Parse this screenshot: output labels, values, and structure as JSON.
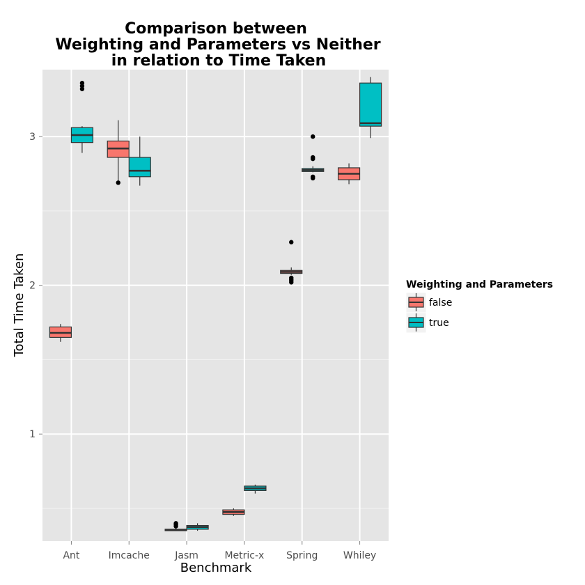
{
  "chart_data": {
    "type": "box",
    "title": [
      "Comparison between",
      "Weighting and Parameters vs Neither",
      "in relation to Time Taken"
    ],
    "xlabel": "Benchmark",
    "ylabel": "Total Time Taken",
    "ylim": [
      0.28,
      3.45
    ],
    "yticks": [
      1,
      2,
      3
    ],
    "ytick_labels": [
      "1",
      "2",
      "3"
    ],
    "grid": true,
    "legend": {
      "title": "Weighting and Parameters",
      "placement": "right",
      "entries": [
        {
          "name": "false",
          "color": "#F8766D"
        },
        {
          "name": "true",
          "color": "#00BFC4"
        }
      ]
    },
    "categories": [
      "Ant",
      "Imcache",
      "Jasm",
      "Metric-x",
      "Spring",
      "Whiley"
    ],
    "series": [
      {
        "name": "false",
        "color": "#F8766D",
        "boxes": [
          {
            "category": "Ant",
            "min": 1.62,
            "q1": 1.65,
            "median": 1.68,
            "q3": 1.72,
            "max": 1.74,
            "outliers": []
          },
          {
            "category": "Imcache",
            "min": 2.7,
            "q1": 2.86,
            "median": 2.92,
            "q3": 2.97,
            "max": 3.11,
            "outliers": [
              2.69
            ]
          },
          {
            "category": "Jasm",
            "min": 0.35,
            "q1": 0.35,
            "median": 0.355,
            "q3": 0.36,
            "max": 0.37,
            "outliers": [
              0.38,
              0.39,
              0.4
            ]
          },
          {
            "category": "Metric-x",
            "min": 0.45,
            "q1": 0.46,
            "median": 0.475,
            "q3": 0.49,
            "max": 0.5,
            "outliers": []
          },
          {
            "category": "Spring",
            "min": 2.07,
            "q1": 2.08,
            "median": 2.09,
            "q3": 2.1,
            "max": 2.12,
            "outliers": [
              2.02,
              2.03,
              2.04,
              2.05,
              2.29
            ]
          },
          {
            "category": "Whiley",
            "min": 2.68,
            "q1": 2.71,
            "median": 2.75,
            "q3": 2.79,
            "max": 2.82,
            "outliers": []
          }
        ]
      },
      {
        "name": "true",
        "color": "#00BFC4",
        "boxes": [
          {
            "category": "Ant",
            "min": 2.89,
            "q1": 2.96,
            "median": 3.01,
            "q3": 3.06,
            "max": 3.07,
            "outliers": [
              3.32,
              3.34,
              3.36
            ]
          },
          {
            "category": "Imcache",
            "min": 2.67,
            "q1": 2.73,
            "median": 2.77,
            "q3": 2.86,
            "max": 3.0,
            "outliers": []
          },
          {
            "category": "Jasm",
            "min": 0.35,
            "q1": 0.36,
            "median": 0.375,
            "q3": 0.385,
            "max": 0.4,
            "outliers": []
          },
          {
            "category": "Metric-x",
            "min": 0.6,
            "q1": 0.62,
            "median": 0.635,
            "q3": 0.65,
            "max": 0.66,
            "outliers": []
          },
          {
            "category": "Spring",
            "min": 2.76,
            "q1": 2.765,
            "median": 2.775,
            "q3": 2.785,
            "max": 2.8,
            "outliers": [
              2.72,
              2.73,
              2.85,
              2.86,
              3.0
            ]
          },
          {
            "category": "Whiley",
            "min": 2.99,
            "q1": 3.07,
            "median": 3.09,
            "q3": 3.36,
            "max": 3.4,
            "outliers": []
          }
        ]
      }
    ]
  }
}
